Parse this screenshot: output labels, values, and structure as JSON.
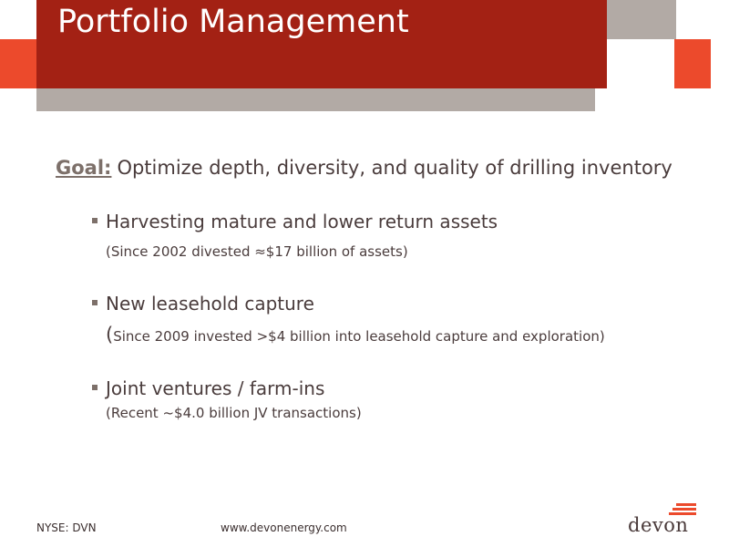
{
  "slide": {
    "title": "Portfolio Management",
    "goal": {
      "label": "Goal:",
      "text": "Optimize depth, diversity, and quality of drilling inventory"
    },
    "bullets": [
      {
        "text": "Harvesting mature and lower return assets",
        "sub_prefix": "",
        "sub": "(Since 2002 divested ≈$17 billion of assets)"
      },
      {
        "text": "New leasehold capture",
        "sub_prefix": "(",
        "sub": "Since 2009 invested >$4 billion into leasehold capture and exploration)"
      },
      {
        "text": "Joint ventures / farm-ins",
        "sub_prefix": "",
        "sub": "(Recent ~$4.0 billion JV transactions)"
      }
    ]
  },
  "footer": {
    "ticker": "NYSE: DVN",
    "website": "www.devonenergy.com"
  },
  "logo": {
    "text": "devon"
  },
  "colors": {
    "header_red": "#a32114",
    "accent_orange": "#ec4a2c",
    "header_gray": "#b2aaa5",
    "body_text": "#4a3c3c",
    "goal_label": "#7d706a"
  }
}
